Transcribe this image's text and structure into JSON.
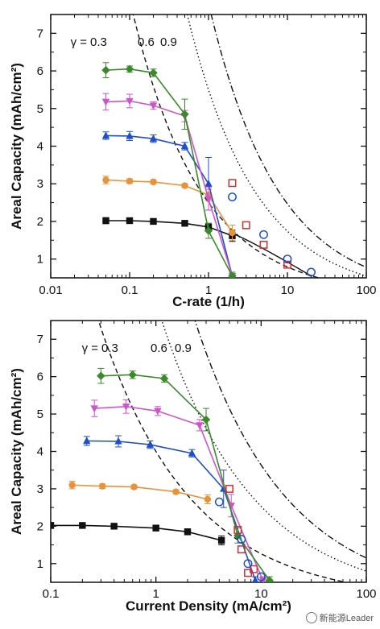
{
  "chart_data": [
    {
      "type": "line",
      "title": "",
      "xlabel": "C-rate (1/h)",
      "ylabel": "Areal Capacity (mAh/cm²)",
      "xscale": "log",
      "xlim": [
        0.01,
        100
      ],
      "ylim": [
        0.5,
        7.5
      ],
      "xticks": [
        "0.01",
        "0.1",
        "1",
        "10",
        "100"
      ],
      "yticks": [
        "1",
        "2",
        "3",
        "4",
        "5",
        "6",
        "7"
      ],
      "gamma_prefix": "γ = ",
      "gamma_labels": [
        "0.3",
        "0.6",
        "0.9"
      ],
      "series": [
        {
          "marker": "square",
          "color": "#111111",
          "x": [
            0.05,
            0.1,
            0.2,
            0.5,
            1,
            2
          ],
          "y": [
            2.02,
            2.02,
            2.0,
            1.95,
            1.85,
            1.62
          ],
          "err": [
            0.08,
            0.07,
            0.05,
            0.05,
            0.1,
            0.15
          ]
        },
        {
          "marker": "circle",
          "color": "#e8923a",
          "x": [
            0.05,
            0.1,
            0.2,
            0.5,
            1,
            2
          ],
          "y": [
            3.1,
            3.07,
            3.05,
            2.95,
            2.7,
            1.7
          ],
          "err": [
            0.1,
            0.06,
            0.05,
            0.05,
            0.15,
            0.2
          ]
        },
        {
          "marker": "triangle-up",
          "color": "#1f4fc8",
          "x": [
            0.05,
            0.1,
            0.2,
            0.5,
            1,
            2
          ],
          "y": [
            4.28,
            4.27,
            4.2,
            4.0,
            3.0,
            0.55
          ],
          "err": [
            0.1,
            0.12,
            0.1,
            0.1,
            0.7,
            0.1
          ]
        },
        {
          "marker": "triangle-down",
          "color": "#cc55cc",
          "x": [
            0.05,
            0.1,
            0.2,
            0.5,
            1,
            2
          ],
          "y": [
            5.18,
            5.2,
            5.08,
            4.8,
            2.6,
            0.55
          ],
          "err": [
            0.22,
            0.18,
            0.1,
            0.15,
            0.3,
            0.1
          ]
        },
        {
          "marker": "diamond",
          "color": "#3a8a2a",
          "x": [
            0.05,
            0.1,
            0.2,
            0.5,
            1,
            2
          ],
          "y": [
            6.02,
            6.05,
            5.95,
            4.85,
            1.75,
            0.55
          ],
          "err": [
            0.2,
            0.08,
            0.1,
            0.4,
            0.2,
            0.1
          ]
        }
      ],
      "open_markers": [
        {
          "marker": "open-square",
          "color": "#d03030",
          "x": [
            2,
            3,
            5,
            10
          ],
          "y": [
            3.02,
            1.9,
            1.38,
            0.85
          ]
        },
        {
          "marker": "open-circle",
          "color": "#1f4fc8",
          "x": [
            2,
            5,
            10,
            20
          ],
          "y": [
            2.65,
            1.65,
            1.0,
            0.65
          ]
        }
      ],
      "model_curves": [
        {
          "gamma": "0.3",
          "style": "dashed",
          "k": 2.5
        },
        {
          "gamma": "0.6",
          "style": "dotted",
          "k": 5.5
        },
        {
          "gamma": "0.9",
          "style": "dash-dot",
          "k": 7.8
        },
        {
          "style": "solid-black",
          "x": [
            2,
            20
          ],
          "y": [
            1.68,
            0.55
          ]
        }
      ]
    },
    {
      "type": "line",
      "title": "",
      "xlabel": "Current Density (mA/cm²)",
      "ylabel": "Areal Capacity (mAh/cm²)",
      "xscale": "log",
      "xlim": [
        0.1,
        100
      ],
      "ylim": [
        0.5,
        7.5
      ],
      "xticks": [
        "0.1",
        "1",
        "10",
        "100"
      ],
      "yticks": [
        "1",
        "2",
        "3",
        "4",
        "5",
        "6",
        "7"
      ],
      "gamma_prefix": "γ = ",
      "gamma_labels": [
        "0.3",
        "0.6",
        "0.9"
      ],
      "series": [
        {
          "marker": "square",
          "color": "#111111",
          "x": [
            0.1,
            0.2,
            0.4,
            1.0,
            2.0,
            4.2
          ],
          "y": [
            2.02,
            2.02,
            2.0,
            1.95,
            1.85,
            1.62
          ],
          "err": [
            0.08,
            0.07,
            0.05,
            0.05,
            0.08,
            0.12
          ]
        },
        {
          "marker": "circle",
          "color": "#e8923a",
          "x": [
            0.16,
            0.31,
            0.62,
            1.55,
            3.1
          ],
          "y": [
            3.1,
            3.07,
            3.05,
            2.92,
            2.72
          ],
          "err": [
            0.1,
            0.06,
            0.05,
            0.05,
            0.12
          ]
        },
        {
          "marker": "triangle-up",
          "color": "#1f4fc8",
          "x": [
            0.22,
            0.44,
            0.88,
            2.2,
            4.4,
            8.8
          ],
          "y": [
            4.28,
            4.27,
            4.18,
            3.95,
            3.0,
            0.55
          ],
          "err": [
            0.12,
            0.15,
            0.1,
            0.1,
            0.5,
            0.1
          ]
        },
        {
          "marker": "triangle-down",
          "color": "#cc55cc",
          "x": [
            0.26,
            0.52,
            1.04,
            2.6,
            5.2,
            10.4
          ],
          "y": [
            5.15,
            5.2,
            5.08,
            4.7,
            2.55,
            0.55
          ],
          "err": [
            0.22,
            0.18,
            0.12,
            0.15,
            0.3,
            0.1
          ]
        },
        {
          "marker": "diamond",
          "color": "#3a8a2a",
          "x": [
            0.3,
            0.6,
            1.2,
            3.0,
            6.0,
            12.0
          ],
          "y": [
            6.02,
            6.05,
            5.95,
            4.85,
            1.75,
            0.55
          ],
          "err": [
            0.2,
            0.1,
            0.1,
            0.3,
            0.2,
            0.1
          ]
        }
      ],
      "open_markers": [
        {
          "marker": "open-square",
          "color": "#d03030",
          "x": [
            5.0,
            6.0,
            6.5,
            7.5,
            8.5
          ],
          "y": [
            3.0,
            1.9,
            1.38,
            0.75,
            0.85
          ]
        },
        {
          "marker": "open-circle",
          "color": "#1f4fc8",
          "x": [
            4.0,
            6.5,
            7.5,
            10.0
          ],
          "y": [
            2.65,
            1.65,
            1.0,
            0.65
          ]
        }
      ],
      "model_curves": [
        {
          "gamma": "0.3",
          "style": "dashed",
          "k": 4.0
        },
        {
          "gamma": "0.6",
          "style": "dotted",
          "k": 8.0
        },
        {
          "gamma": "0.9",
          "style": "dash-dot",
          "k": 11.5
        }
      ]
    }
  ],
  "watermark": "新能源Leader"
}
